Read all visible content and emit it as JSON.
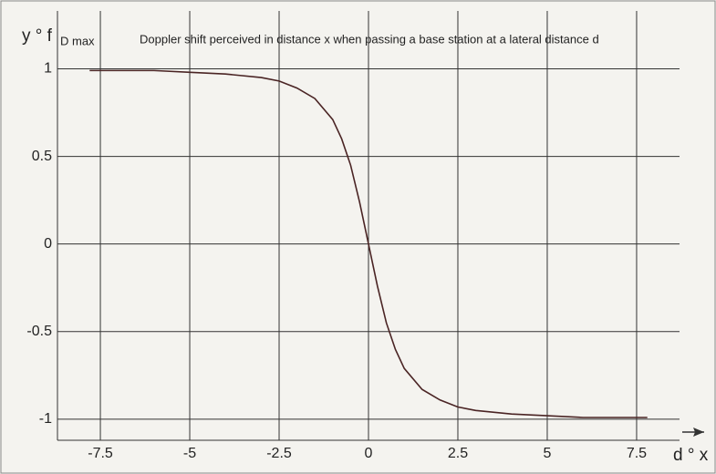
{
  "chart_data": {
    "type": "line",
    "title": "Doppler shift perceived in distance x when passing a base station at a lateral distance d",
    "ylabel": {
      "main": "y ° f",
      "sub": "D max"
    },
    "xlabel": "d ° x",
    "x": [
      -7.8,
      -6,
      -5,
      -4,
      -3,
      -2.5,
      -2,
      -1.5,
      -1,
      -0.75,
      -0.5,
      -0.25,
      0,
      0.25,
      0.5,
      0.75,
      1,
      1.5,
      2,
      2.5,
      3,
      4,
      5,
      6,
      7.8
    ],
    "series": [
      {
        "color": "#4a2424",
        "values": [
          0.99,
          0.99,
          0.98,
          0.97,
          0.95,
          0.93,
          0.89,
          0.83,
          0.71,
          0.6,
          0.45,
          0.24,
          0,
          -0.24,
          -0.45,
          -0.6,
          -0.71,
          -0.83,
          -0.89,
          -0.93,
          -0.95,
          -0.97,
          -0.98,
          -0.99,
          -0.99
        ]
      }
    ],
    "xlim": [
      -8.7,
      8.7
    ],
    "ylim": [
      -1.12,
      1.33
    ],
    "xticks": [
      -7.5,
      -5,
      -2.5,
      0,
      2.5,
      5,
      7.5
    ],
    "yticks": [
      -1,
      -0.5,
      0,
      0.5,
      1
    ],
    "grid": true
  }
}
